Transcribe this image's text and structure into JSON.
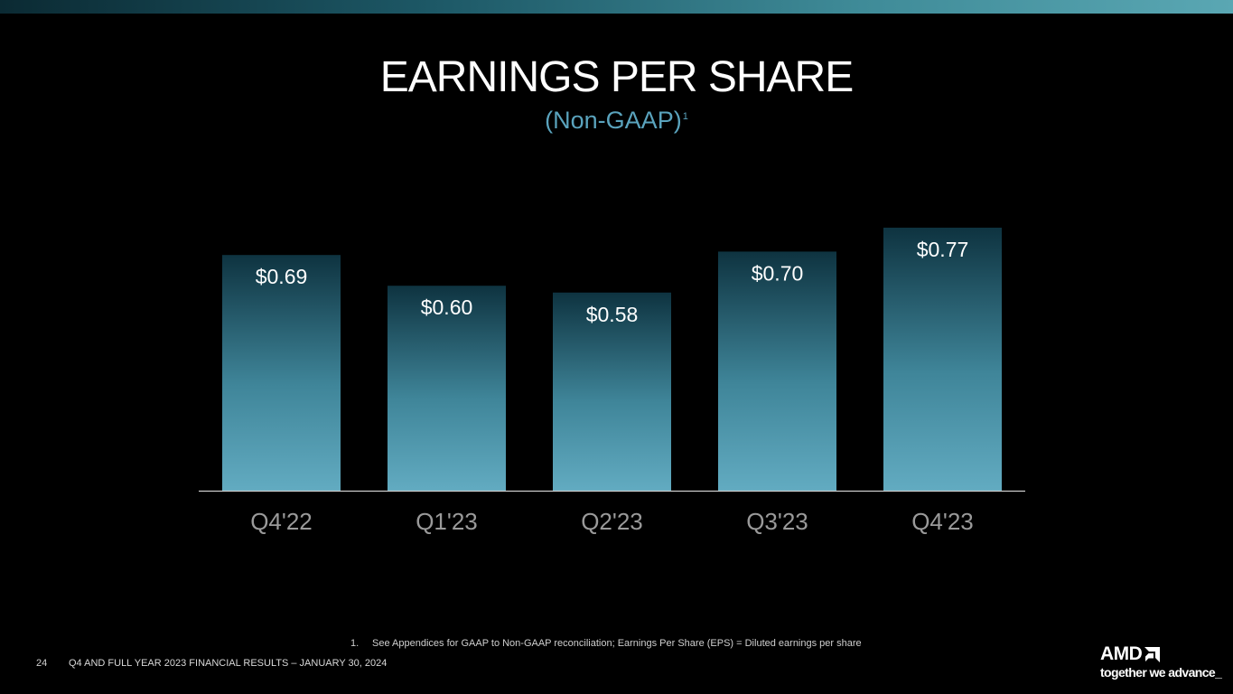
{
  "header": {
    "title": "EARNINGS PER SHARE",
    "subtitle": "(Non-GAAP)",
    "subtitle_footnote_ref": "1"
  },
  "chart_data": {
    "type": "bar",
    "categories": [
      "Q4'22",
      "Q1'23",
      "Q2'23",
      "Q3'23",
      "Q4'23"
    ],
    "values": [
      0.69,
      0.6,
      0.58,
      0.7,
      0.77
    ],
    "data_labels": [
      "$0.69",
      "$0.60",
      "$0.58",
      "$0.70",
      "$0.77"
    ],
    "title": "EARNINGS PER SHARE",
    "subtitle": "(Non-GAAP)",
    "xlabel": "",
    "ylabel": "",
    "grid": false,
    "legend": "none",
    "colors": {
      "bar_top": "#0e3340",
      "bar_bottom": "#62abc1",
      "axis": "#cccccc",
      "tick_label": "#9a9a9a",
      "data_label": "#ffffff"
    }
  },
  "footnote": {
    "number": "1.",
    "text": "See Appendices for GAAP to Non-GAAP reconciliation; Earnings Per Share (EPS) = Diluted earnings per share"
  },
  "footer": {
    "page_number": "24",
    "text": "Q4 AND FULL YEAR 2023 FINANCIAL RESULTS – JANUARY 30, 2024"
  },
  "logo": {
    "wordmark": "AMD",
    "tagline": "together we advance_"
  }
}
